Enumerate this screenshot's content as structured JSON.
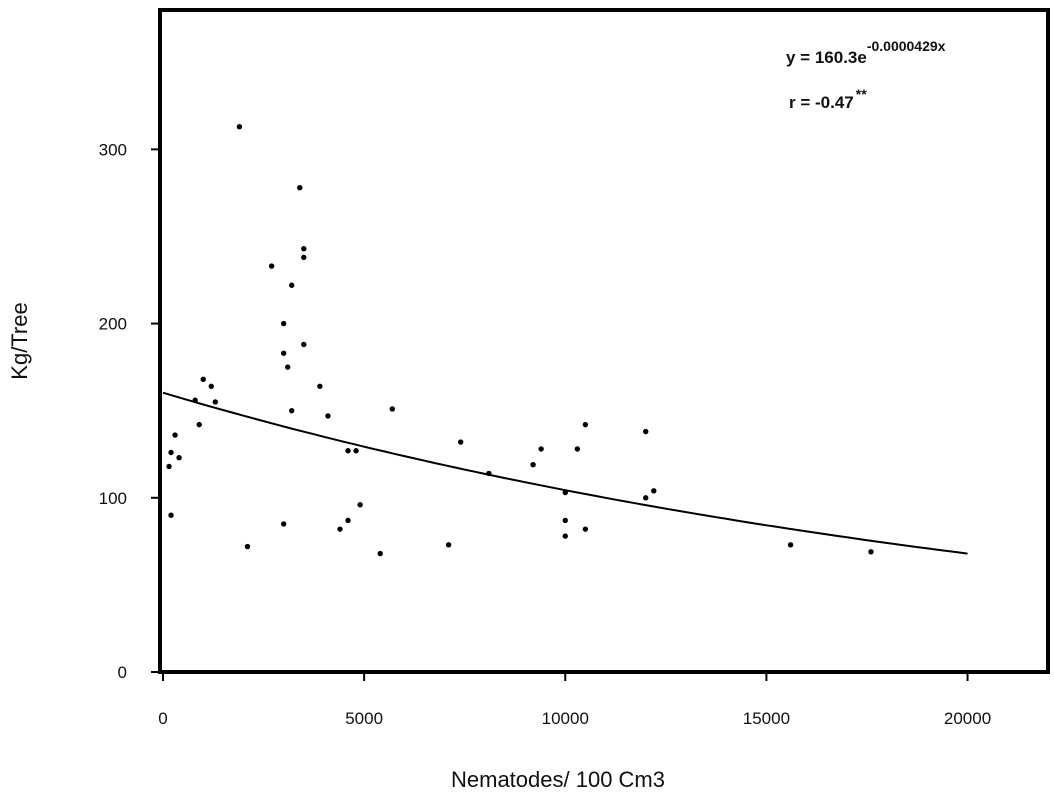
{
  "chart_data": {
    "type": "scatter",
    "title": "",
    "xlabel": "Nematodes/ 100 Cm3",
    "ylabel": "Kg/Tree",
    "xlim": [
      0,
      22000
    ],
    "ylim": [
      0,
      380
    ],
    "x_ticks": [
      0,
      5000,
      10000,
      15000,
      20000
    ],
    "y_ticks": [
      0,
      100,
      200,
      300
    ],
    "x_tick_labels": [
      "0",
      "5000",
      "10000",
      "15000",
      "20000"
    ],
    "y_tick_labels": [
      "0",
      "100",
      "200",
      "300"
    ],
    "grid": false,
    "legend": "none",
    "annotation": {
      "equation_prefix": "y = 160.3e",
      "equation_exponent": "-0.0000429x",
      "r_value": "r = -0.47",
      "r_significance": "**"
    },
    "fit": {
      "type": "exponential",
      "a": 160.3,
      "b": -4.29e-05,
      "x_range": [
        0,
        20000
      ]
    },
    "series": [
      {
        "points": [
          [
            150,
            118
          ],
          [
            200,
            126
          ],
          [
            200,
            90
          ],
          [
            300,
            136
          ],
          [
            400,
            123
          ],
          [
            800,
            156
          ],
          [
            900,
            142
          ],
          [
            1000,
            168
          ],
          [
            1200,
            164
          ],
          [
            1300,
            155
          ],
          [
            1900,
            313
          ],
          [
            2100,
            72
          ],
          [
            2700,
            233
          ],
          [
            3000,
            200
          ],
          [
            3000,
            183
          ],
          [
            3000,
            85
          ],
          [
            3100,
            175
          ],
          [
            3200,
            222
          ],
          [
            3200,
            150
          ],
          [
            3400,
            278
          ],
          [
            3500,
            243
          ],
          [
            3500,
            238
          ],
          [
            3500,
            188
          ],
          [
            3900,
            164
          ],
          [
            4100,
            147
          ],
          [
            4400,
            82
          ],
          [
            4600,
            127
          ],
          [
            4600,
            87
          ],
          [
            4800,
            127
          ],
          [
            4900,
            96
          ],
          [
            5400,
            68
          ],
          [
            5700,
            151
          ],
          [
            7100,
            73
          ],
          [
            7400,
            132
          ],
          [
            8100,
            114
          ],
          [
            9200,
            119
          ],
          [
            9400,
            128
          ],
          [
            10000,
            103
          ],
          [
            10000,
            87
          ],
          [
            10000,
            78
          ],
          [
            10300,
            128
          ],
          [
            10500,
            142
          ],
          [
            10500,
            82
          ],
          [
            12000,
            138
          ],
          [
            12000,
            100
          ],
          [
            12200,
            104
          ],
          [
            15600,
            73
          ],
          [
            17600,
            69
          ]
        ]
      }
    ]
  }
}
